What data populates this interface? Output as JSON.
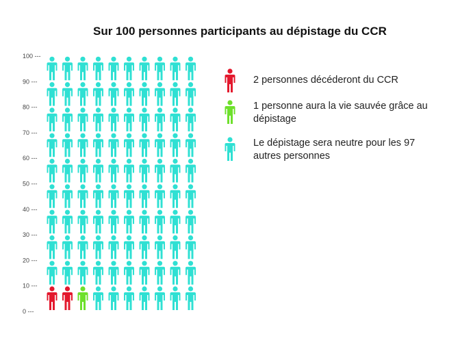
{
  "chart_data": {
    "type": "pictogram",
    "title": "Sur 100 personnes participants au dépistage du CCR",
    "total": 100,
    "columns": 10,
    "rows": 10,
    "y_ticks": [
      "100 ---",
      "90 ---",
      "80 ---",
      "70 ---",
      "60 ---",
      "50 ---",
      "40 ---",
      "30 ---",
      "20 ---",
      "10 ---",
      "0 ---"
    ],
    "ylim": [
      0,
      100
    ],
    "series": [
      {
        "name": "2 personnes décéderont du CCR",
        "value": 2,
        "color": "#e3182d"
      },
      {
        "name": "1 personne aura la vie sauvée grâce au dépistage",
        "value": 1,
        "color": "#6ee02c"
      },
      {
        "name": "Le dépistage sera neutre pour les 97 autres personnes",
        "value": 97,
        "color": "#2fe0d3"
      }
    ]
  },
  "legend": [
    {
      "text": "2 personnes décéderont du CCR",
      "color": "#e3182d"
    },
    {
      "text": "1 personne aura la vie sauvée grâce au dépistage",
      "color": "#6ee02c"
    },
    {
      "text": "Le dépistage sera neutre pour les 97 autres personnes",
      "color": "#2fe0d3"
    }
  ]
}
